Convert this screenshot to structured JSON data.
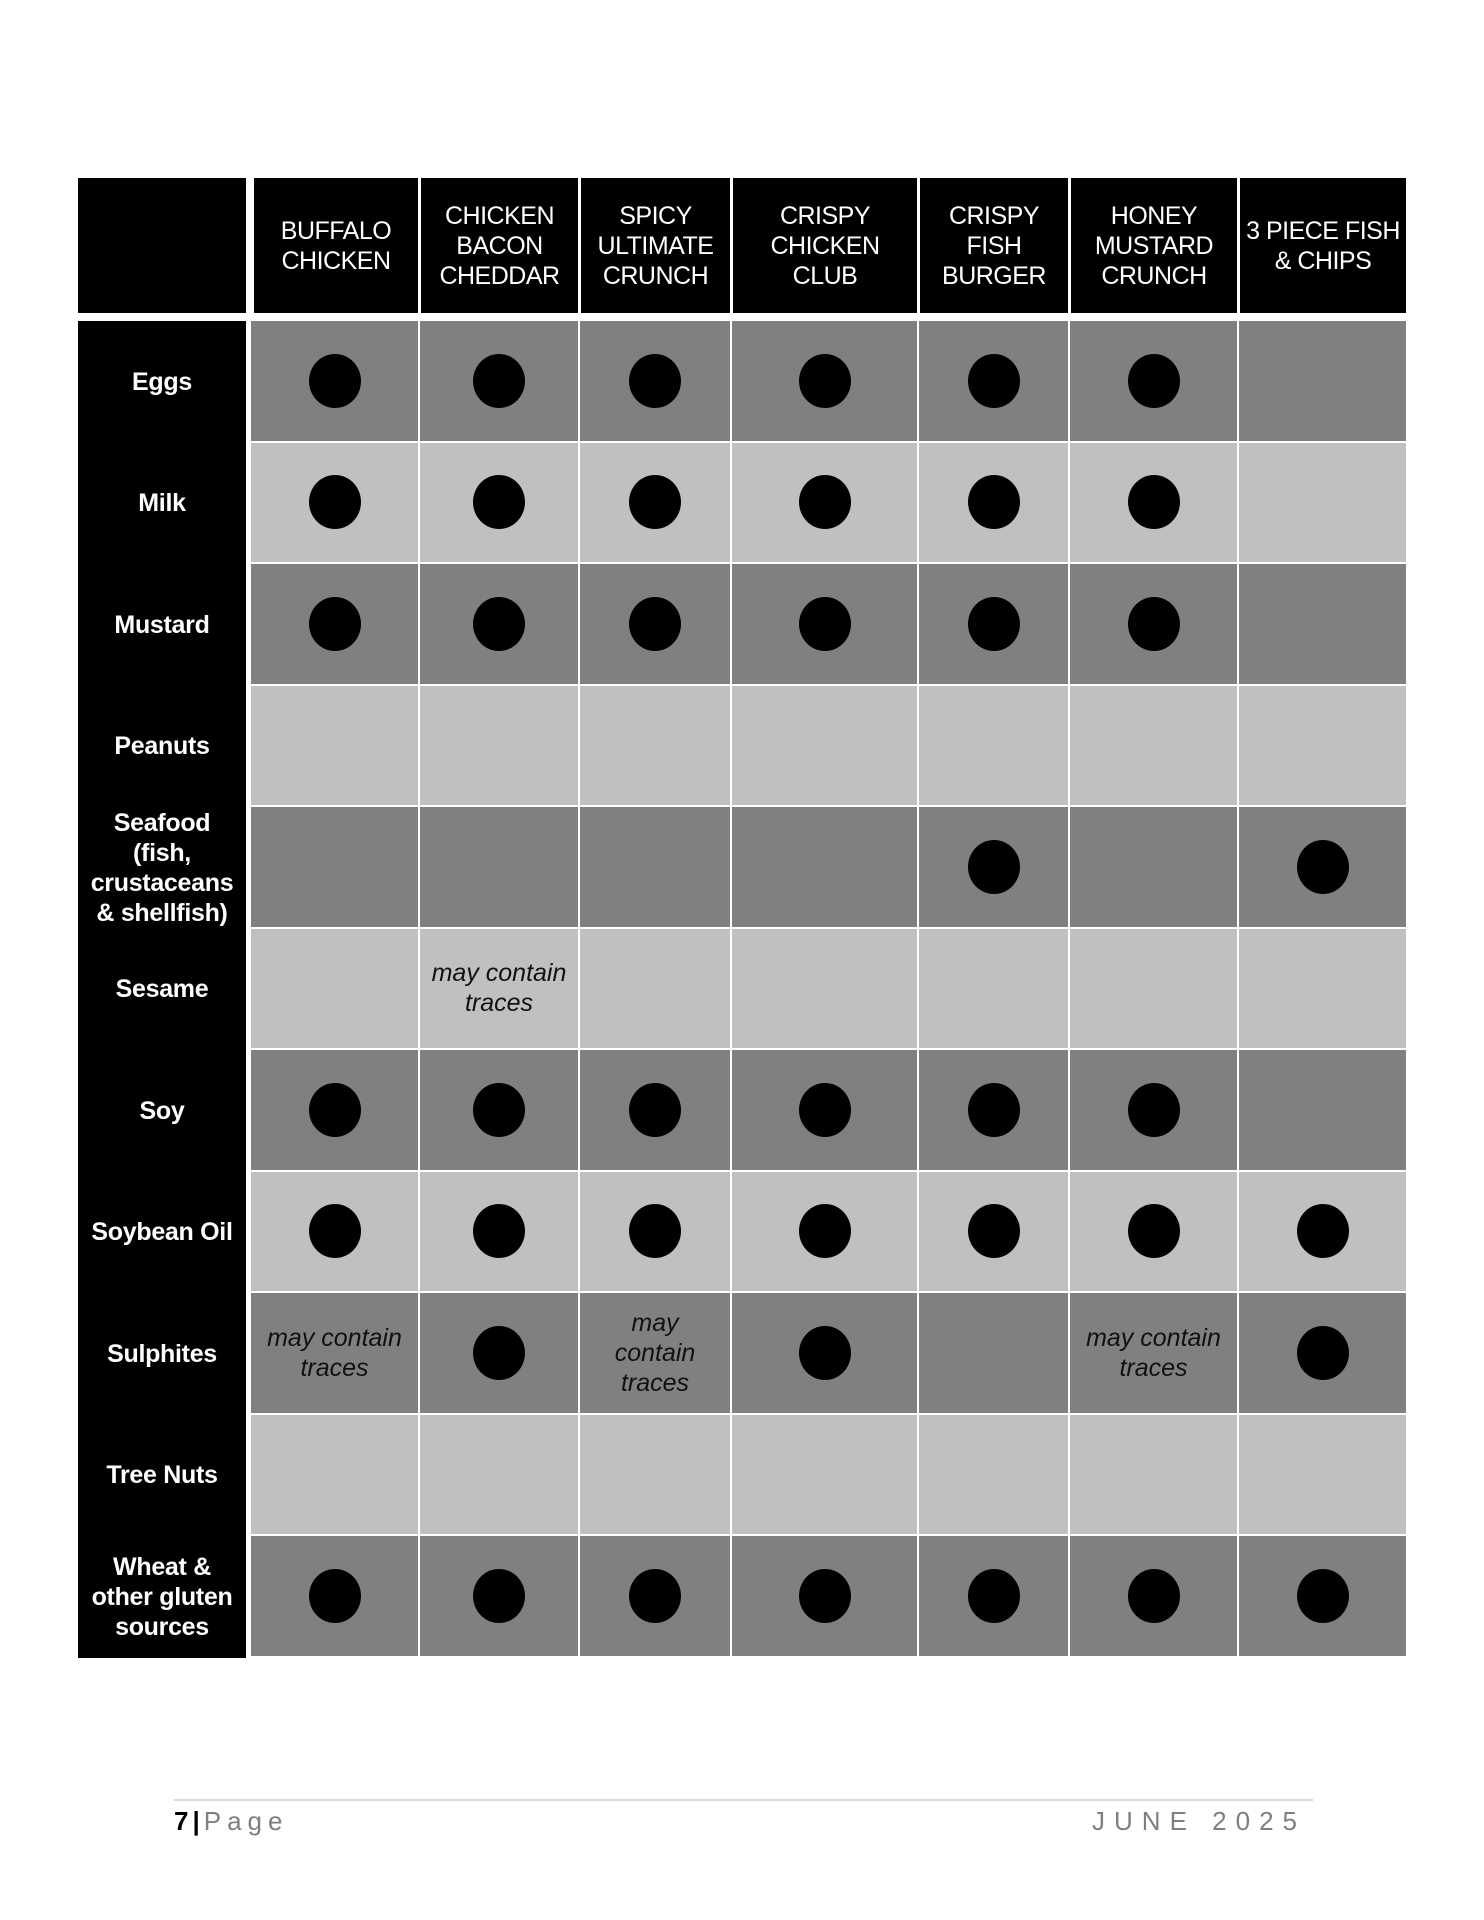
{
  "colors": {
    "header_bg": "#000000",
    "row_dark": "#808080",
    "row_light": "#c0c0c0",
    "dot": "#000000"
  },
  "legend_icon": "filled-circle = contains allergen",
  "columns": [
    "BUFFALO CHICKEN",
    "CHICKEN BACON CHEDDAR",
    "SPICY ULTIMATE CRUNCH",
    "CRISPY CHICKEN CLUB",
    "CRISPY FISH BURGER",
    "HONEY MUSTARD CRUNCH",
    "3 PIECE FISH & CHIPS"
  ],
  "trace_text": "may contain traces",
  "rows": [
    {
      "allergen": "Eggs",
      "values": [
        "dot",
        "dot",
        "dot",
        "dot",
        "dot",
        "dot",
        ""
      ]
    },
    {
      "allergen": "Milk",
      "values": [
        "dot",
        "dot",
        "dot",
        "dot",
        "dot",
        "dot",
        ""
      ]
    },
    {
      "allergen": "Mustard",
      "values": [
        "dot",
        "dot",
        "dot",
        "dot",
        "dot",
        "dot",
        ""
      ]
    },
    {
      "allergen": "Peanuts",
      "values": [
        "",
        "",
        "",
        "",
        "",
        "",
        ""
      ]
    },
    {
      "allergen": "Seafood (fish, crustaceans & shellfish)",
      "values": [
        "",
        "",
        "",
        "",
        "dot",
        "",
        "dot"
      ]
    },
    {
      "allergen": "Sesame",
      "values": [
        "",
        "trace",
        "",
        "",
        "",
        "",
        ""
      ]
    },
    {
      "allergen": "Soy",
      "values": [
        "dot",
        "dot",
        "dot",
        "dot",
        "dot",
        "dot",
        ""
      ]
    },
    {
      "allergen": "Soybean Oil",
      "values": [
        "dot",
        "dot",
        "dot",
        "dot",
        "dot",
        "dot",
        "dot"
      ]
    },
    {
      "allergen": "Sulphites",
      "values": [
        "trace",
        "dot",
        "trace",
        "dot",
        "",
        "trace",
        "dot"
      ]
    },
    {
      "allergen": "Tree Nuts",
      "values": [
        "",
        "",
        "",
        "",
        "",
        "",
        ""
      ]
    },
    {
      "allergen": "Wheat & other gluten sources",
      "values": [
        "dot",
        "dot",
        "dot",
        "dot",
        "dot",
        "dot",
        "dot"
      ]
    }
  ],
  "footer": {
    "page_number": "7",
    "separator": "|",
    "page_word": "Page",
    "date": "JUNE 2025"
  }
}
